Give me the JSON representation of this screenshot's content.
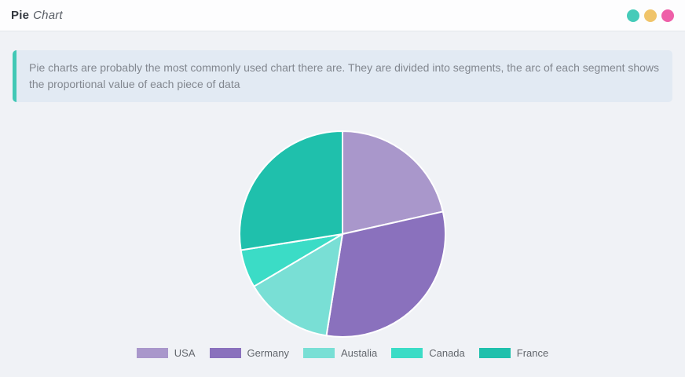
{
  "header": {
    "title_primary": "Pie",
    "title_secondary": "Chart",
    "window_dots": [
      {
        "name": "teal-dot",
        "color": "#45cbb9"
      },
      {
        "name": "yellow-dot",
        "color": "#f0c46a"
      },
      {
        "name": "pink-dot",
        "color": "#ee5fa8"
      }
    ]
  },
  "info_banner": {
    "text": "Pie charts are probably the most commonly used chart there are. They are divided into segments, the arc of each segment shows the proportional value of each piece of data",
    "accent_color": "#41c8b5"
  },
  "chart_data": {
    "type": "pie",
    "labels": [
      "USA",
      "Germany",
      "Austalia",
      "Canada",
      "France"
    ],
    "values_percent": [
      21.5,
      31,
      14,
      6,
      27.5
    ],
    "colors": [
      "#a997cb",
      "#8a71bd",
      "#79dfd5",
      "#3bdcc6",
      "#1fc0ac"
    ],
    "start_angle_deg": 0,
    "direction": "clockwise",
    "separator_color": "#ffffff",
    "legend_position": "bottom",
    "title": "Pie Chart"
  }
}
